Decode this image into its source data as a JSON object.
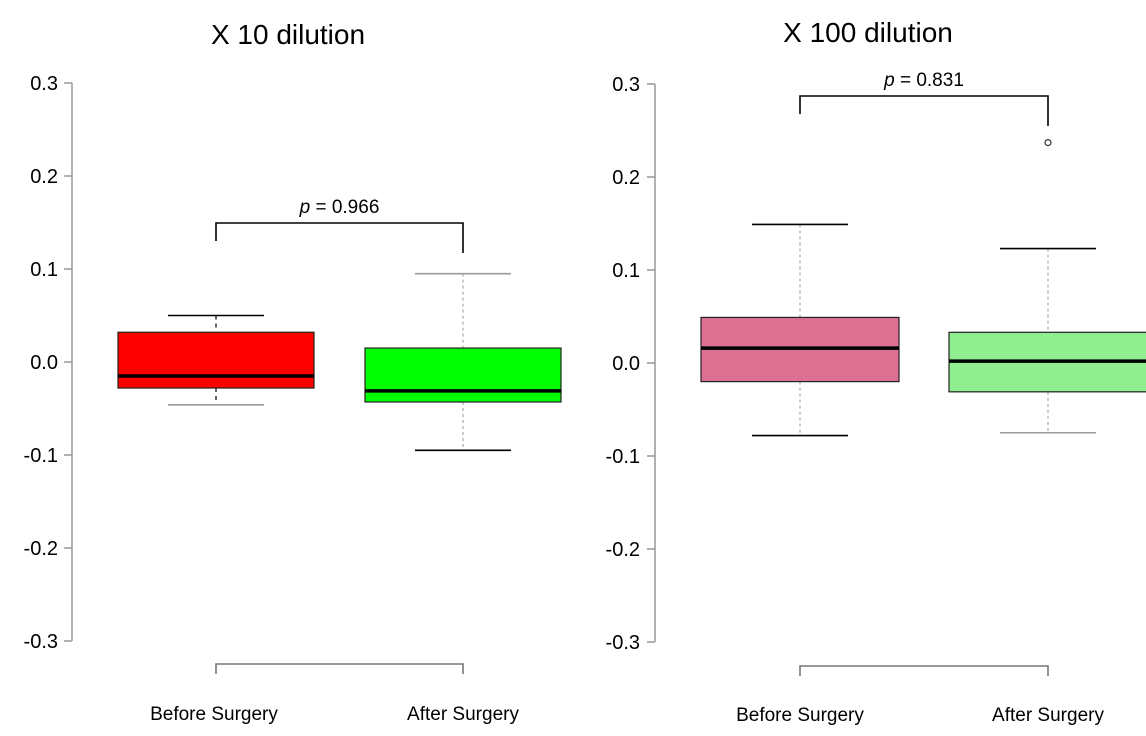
{
  "chart_data": [
    {
      "type": "box",
      "title": "X 10 dilution",
      "xlabel": "",
      "ylabel": "",
      "ylim": [
        -0.3,
        0.3
      ],
      "yticks": [
        -0.3,
        -0.2,
        -0.1,
        0.0,
        0.1,
        0.2,
        0.3
      ],
      "ytick_labels": [
        "-0.3",
        "-0.2",
        "-0.1",
        "0.0",
        "0.1",
        "0.2",
        "0.3"
      ],
      "categories": [
        "Before Surgery",
        "After Surgery"
      ],
      "boxes": [
        {
          "category": "Before Surgery",
          "whisker_low": -0.046,
          "q1": -0.028,
          "median": -0.015,
          "q3": 0.032,
          "whisker_high": 0.05,
          "color": "#ff0000",
          "outliers": []
        },
        {
          "category": "After Surgery",
          "whisker_low": -0.095,
          "q1": -0.043,
          "median": -0.031,
          "q3": 0.015,
          "whisker_high": 0.095,
          "color": "#00ff00",
          "outliers": []
        }
      ],
      "annotation": {
        "label_prefix": "p",
        "label_value": " = 0.966",
        "y": 0.148
      }
    },
    {
      "type": "box",
      "title": "X 100 dilution",
      "xlabel": "",
      "ylabel": "",
      "ylim": [
        -0.3,
        0.3
      ],
      "yticks": [
        -0.3,
        -0.2,
        -0.1,
        0.0,
        0.1,
        0.2,
        0.3
      ],
      "ytick_labels": [
        "-0.3",
        "-0.2",
        "-0.1",
        "0.0",
        "0.1",
        "0.2",
        "0.3"
      ],
      "categories": [
        "Before Surgery",
        "After Surgery"
      ],
      "boxes": [
        {
          "category": "Before Surgery",
          "whisker_low": -0.078,
          "q1": -0.02,
          "median": 0.016,
          "q3": 0.049,
          "whisker_high": 0.149,
          "color": "#db7093",
          "outliers": []
        },
        {
          "category": "After Surgery",
          "whisker_low": -0.075,
          "q1": -0.031,
          "median": 0.002,
          "q3": 0.033,
          "whisker_high": 0.123,
          "color": "#90ee90",
          "outliers": [
            0.237
          ]
        }
      ],
      "annotation": {
        "label_prefix": "p",
        "label_value": " = 0.831",
        "y": 0.287
      }
    }
  ]
}
